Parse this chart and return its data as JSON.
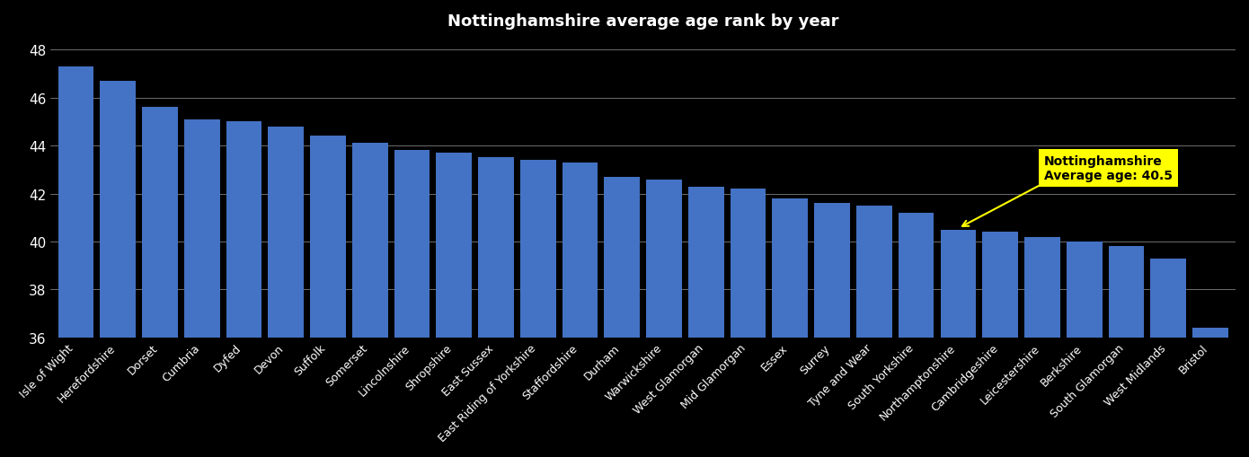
{
  "categories": [
    "Isle of Wight",
    "Herefordshire",
    "Dorset",
    "Cumbria",
    "Dyfed",
    "Devon",
    "Suffolk",
    "Somerset",
    "Lincolnshire",
    "Shropshire",
    "East Sussex",
    "East Riding of Yorkshire",
    "Staffordshire",
    "Durham",
    "Warwickshire",
    "West Glamorgan",
    "Mid Glamorgan",
    "Essex",
    "Surrey",
    "Tyne and Wear",
    "South Yorkshire",
    "Northamptonshire",
    "Cambridgeshire",
    "Leicestershire",
    "Berkshire",
    "South Glamorgan",
    "West Midlands",
    "Bristol"
  ],
  "values": [
    47.3,
    46.7,
    45.6,
    45.1,
    45.0,
    44.8,
    44.4,
    44.1,
    43.8,
    43.7,
    43.5,
    43.4,
    43.3,
    42.7,
    42.6,
    42.3,
    42.2,
    41.8,
    41.6,
    41.5,
    41.2,
    40.5,
    40.4,
    40.2,
    40.0,
    39.8,
    39.3,
    36.4
  ],
  "nottinghamshire_idx": 21,
  "nottinghamshire_val": 40.5,
  "bar_color": "#4472c4",
  "background_color": "#000000",
  "text_color": "#ffffff",
  "grid_color": "#ffffff",
  "annotation_bg": "#ffff00",
  "ylim_min": 36,
  "ylim_max": 48.5,
  "yticks": [
    36,
    38,
    40,
    42,
    44,
    46,
    48
  ],
  "title": "Nottinghamshire average age rank by year",
  "title_fontsize": 13,
  "xtick_fontsize": 9,
  "ytick_fontsize": 11
}
